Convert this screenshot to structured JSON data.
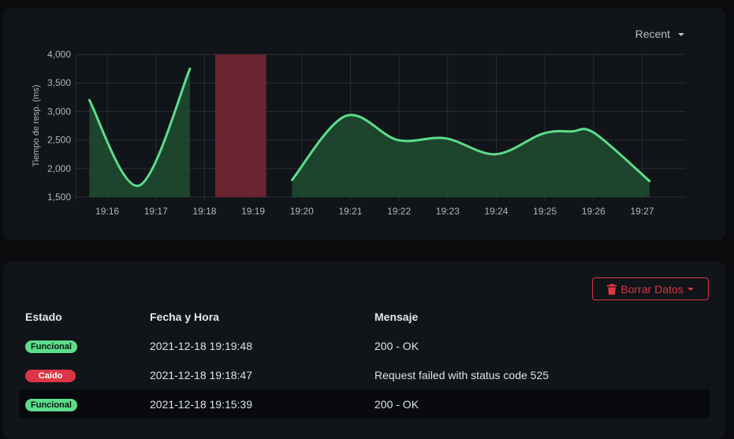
{
  "chart": {
    "range_label": "Recent",
    "colors": {
      "up": "#5cdd8b",
      "up_fill": "#1f4a30",
      "down_fill": "#6a2530",
      "grid": "#2a2e35",
      "tick": "#b0b5bd"
    }
  },
  "chart_data": {
    "type": "area",
    "title": "",
    "xlabel": "",
    "ylabel": "Tiempo de resp. (ms)",
    "ylim": [
      1500,
      4000
    ],
    "yticks": [
      1500,
      2000,
      2500,
      3000,
      3500,
      4000
    ],
    "ytick_labels": [
      "1,500",
      "2,000",
      "2,500",
      "3,000",
      "3,500",
      "4,000"
    ],
    "xticks": [
      "19:16",
      "19:17",
      "19:18",
      "19:19",
      "19:20",
      "19:21",
      "19:22",
      "19:23",
      "19:24",
      "19:25",
      "19:26",
      "19:27"
    ],
    "xlim": [
      15.35,
      27.9
    ],
    "grid": true,
    "segments": [
      {
        "points": [
          [
            15.63,
            3200
          ],
          [
            16.65,
            1700
          ],
          [
            17.7,
            3750
          ]
        ]
      },
      {
        "points": [
          [
            19.8,
            1800
          ],
          [
            20.9,
            2920
          ],
          [
            21.97,
            2500
          ],
          [
            22.95,
            2530
          ],
          [
            23.98,
            2250
          ],
          [
            24.95,
            2610
          ],
          [
            25.55,
            2650
          ],
          [
            26.02,
            2620
          ],
          [
            27.15,
            1780
          ]
        ]
      }
    ],
    "downtime": [
      [
        18.22,
        19.27
      ]
    ]
  },
  "events": {
    "clear_button_label": "Borrar Datos",
    "headers": {
      "status": "Estado",
      "datetime": "Fecha y Hora",
      "message": "Mensaje"
    },
    "rows": [
      {
        "status": "Funcional",
        "status_type": "up",
        "datetime": "2021-12-18 19:19:48",
        "message": "200 - OK"
      },
      {
        "status": "Caído",
        "status_type": "down",
        "datetime": "2021-12-18 19:18:47",
        "message": "Request failed with status code 525"
      },
      {
        "status": "Funcional",
        "status_type": "up",
        "datetime": "2021-12-18 19:15:39",
        "message": "200 - OK"
      }
    ]
  }
}
